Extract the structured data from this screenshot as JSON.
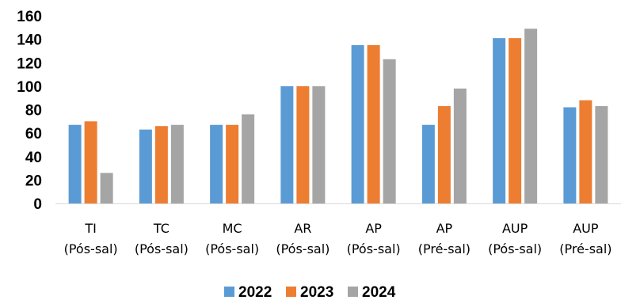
{
  "chart_data": {
    "type": "bar",
    "title": "",
    "xlabel": "",
    "ylabel": "",
    "categories": [
      [
        "TI",
        "(Pós-sal)"
      ],
      [
        "TC",
        "(Pós-sal)"
      ],
      [
        "MC",
        "(Pós-sal)"
      ],
      [
        "AR",
        "(Pós-sal)"
      ],
      [
        "AP",
        "(Pós-sal)"
      ],
      [
        "AP",
        "(Pré-sal)"
      ],
      [
        "AUP",
        "(Pós-sal)"
      ],
      [
        "AUP",
        "(Pré-sal)"
      ]
    ],
    "series": [
      {
        "name": "2022",
        "color": "#5B9BD5",
        "values": [
          67,
          63,
          67,
          100,
          135,
          67,
          141,
          82
        ]
      },
      {
        "name": "2023",
        "color": "#ED7D31",
        "values": [
          70,
          66,
          67,
          100,
          135,
          83,
          141,
          88
        ]
      },
      {
        "name": "2024",
        "color": "#A5A5A5",
        "values": [
          26,
          67,
          76,
          100,
          123,
          98,
          149,
          83
        ]
      }
    ],
    "ylim": [
      0,
      160
    ],
    "yticks": [
      0,
      20,
      40,
      60,
      80,
      100,
      120,
      140,
      160
    ],
    "grid": false,
    "legend": "bottom"
  }
}
